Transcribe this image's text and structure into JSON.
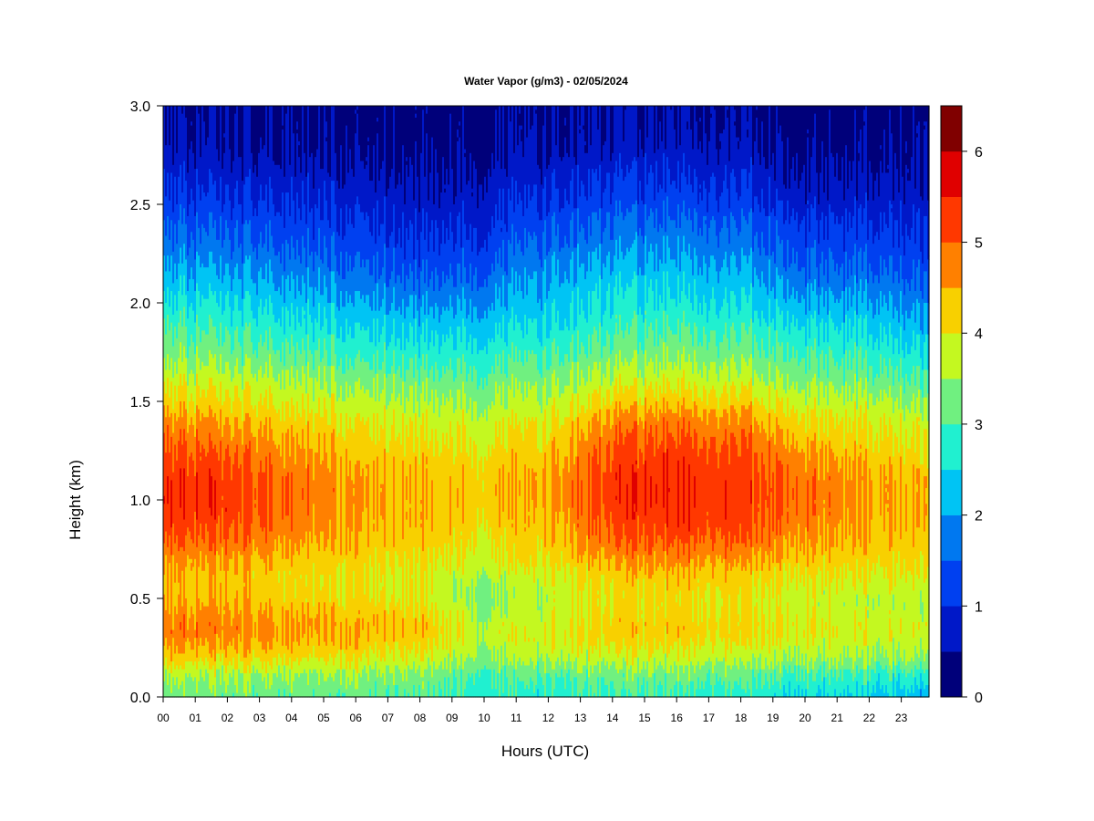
{
  "chart_data": {
    "type": "heatmap",
    "title": "Water Vapor (g/m3) - 02/05/2024",
    "xlabel": "Hours (UTC)",
    "ylabel": "Height (km)",
    "x_tick_labels": [
      "00",
      "01",
      "02",
      "03",
      "04",
      "05",
      "06",
      "07",
      "08",
      "09",
      "10",
      "11",
      "12",
      "13",
      "14",
      "15",
      "16",
      "17",
      "18",
      "19",
      "20",
      "21",
      "22",
      "23"
    ],
    "y_tick_labels": [
      "0.0",
      "0.5",
      "1.0",
      "1.5",
      "2.0",
      "2.5",
      "3.0"
    ],
    "xlim": [
      0,
      23.9
    ],
    "ylim": [
      0,
      3.0
    ],
    "colorbar": {
      "range": [
        0,
        6.5
      ],
      "tick_labels": [
        "0",
        "1",
        "2",
        "3",
        "4",
        "5",
        "6"
      ],
      "levels": [
        0,
        0.5,
        1,
        1.5,
        2,
        2.5,
        3,
        3.5,
        4,
        4.5,
        5,
        5.5,
        6,
        6.5
      ],
      "colors": [
        "#00007a",
        "#0018c8",
        "#0040f0",
        "#0078f0",
        "#00c4f4",
        "#20f0d0",
        "#70f080",
        "#c4f820",
        "#f8d000",
        "#ff8000",
        "#ff3800",
        "#e00000",
        "#800000"
      ]
    },
    "profile_heights_km": [
      0,
      0.1,
      0.2,
      0.3,
      0.35,
      0.4,
      0.5,
      0.6,
      0.7,
      0.8,
      0.9,
      1.0,
      1.1,
      1.2,
      1.3,
      1.4,
      1.5,
      1.6,
      1.7,
      1.8,
      1.9,
      2.0,
      2.1,
      2.2,
      2.3,
      2.4,
      2.5,
      2.6,
      2.7,
      2.8,
      2.9,
      3.0
    ],
    "profiles": [
      {
        "hour": 0,
        "values": [
          3.2,
          3.5,
          4.3,
          4.7,
          4.8,
          4.7,
          4.4,
          4.4,
          4.6,
          5.0,
          5.3,
          5.4,
          5.4,
          5.2,
          5.0,
          4.7,
          4.2,
          3.9,
          3.5,
          3.2,
          3.0,
          2.6,
          2.3,
          2.0,
          1.7,
          1.5,
          1.2,
          1.0,
          0.8,
          0.6,
          0.55,
          0.5
        ]
      },
      {
        "hour": 2,
        "values": [
          3.2,
          3.5,
          4.2,
          4.7,
          4.8,
          4.7,
          4.4,
          4.3,
          4.6,
          5.0,
          5.2,
          5.3,
          5.3,
          5.1,
          4.8,
          4.5,
          4.1,
          3.8,
          3.4,
          3.1,
          2.8,
          2.5,
          2.2,
          1.9,
          1.6,
          1.4,
          1.1,
          0.9,
          0.7,
          0.5,
          0.45,
          0.4
        ]
      },
      {
        "hour": 4,
        "values": [
          3.1,
          3.4,
          4.1,
          4.5,
          4.6,
          4.5,
          4.2,
          4.1,
          4.3,
          4.6,
          4.8,
          4.9,
          4.9,
          4.7,
          4.5,
          4.2,
          3.9,
          3.6,
          3.2,
          2.9,
          2.6,
          2.3,
          2.0,
          1.7,
          1.4,
          1.2,
          1.0,
          0.8,
          0.6,
          0.45,
          0.4,
          0.35
        ]
      },
      {
        "hour": 6,
        "values": [
          3.1,
          3.4,
          4.0,
          4.4,
          4.5,
          4.4,
          4.1,
          4.0,
          4.2,
          4.4,
          4.5,
          4.6,
          4.6,
          4.4,
          4.2,
          4.0,
          3.7,
          3.4,
          3.0,
          2.7,
          2.4,
          2.1,
          1.8,
          1.5,
          1.3,
          1.1,
          0.9,
          0.7,
          0.5,
          0.4,
          0.35,
          0.3
        ]
      },
      {
        "hour": 8,
        "values": [
          3.1,
          3.3,
          3.9,
          4.3,
          4.4,
          4.3,
          4.0,
          3.9,
          4.1,
          4.3,
          4.4,
          4.4,
          4.4,
          4.3,
          4.1,
          3.9,
          3.6,
          3.3,
          2.9,
          2.6,
          2.3,
          1.9,
          1.6,
          1.3,
          1.1,
          0.9,
          0.7,
          0.6,
          0.45,
          0.35,
          0.3,
          0.25
        ]
      },
      {
        "hour": 10,
        "values": [
          2.8,
          3.0,
          3.5,
          3.7,
          3.7,
          3.6,
          3.4,
          3.6,
          3.9,
          4.1,
          4.2,
          4.3,
          4.3,
          4.2,
          4.0,
          3.8,
          3.5,
          3.2,
          2.9,
          2.6,
          2.3,
          2.0,
          1.7,
          1.4,
          1.2,
          1.0,
          0.8,
          0.7,
          0.55,
          0.45,
          0.4,
          0.35
        ]
      },
      {
        "hour": 12,
        "values": [
          2.7,
          3.0,
          3.6,
          3.9,
          3.9,
          3.8,
          3.7,
          3.8,
          4.1,
          4.3,
          4.4,
          4.5,
          4.5,
          4.4,
          4.2,
          4.0,
          3.7,
          3.4,
          3.1,
          2.8,
          2.5,
          2.3,
          2.1,
          1.9,
          1.6,
          1.4,
          1.1,
          0.9,
          0.7,
          0.55,
          0.45,
          0.4
        ]
      },
      {
        "hour": 14,
        "values": [
          2.9,
          3.2,
          3.8,
          4.2,
          4.3,
          4.2,
          4.1,
          4.2,
          4.6,
          5.0,
          5.2,
          5.3,
          5.3,
          5.2,
          5.0,
          4.7,
          4.2,
          3.8,
          3.4,
          3.1,
          2.8,
          2.6,
          2.4,
          2.1,
          1.8,
          1.6,
          1.3,
          1.1,
          0.85,
          0.65,
          0.55,
          0.5
        ]
      },
      {
        "hour": 16,
        "values": [
          2.9,
          3.2,
          3.8,
          4.2,
          4.3,
          4.2,
          4.1,
          4.3,
          4.7,
          5.1,
          5.3,
          5.4,
          5.4,
          5.3,
          5.1,
          4.8,
          4.3,
          3.9,
          3.5,
          3.2,
          2.9,
          2.6,
          2.4,
          2.1,
          1.9,
          1.6,
          1.3,
          1.1,
          0.85,
          0.65,
          0.55,
          0.5
        ]
      },
      {
        "hour": 18,
        "values": [
          2.8,
          3.1,
          3.7,
          4.1,
          4.2,
          4.1,
          4.0,
          4.2,
          4.6,
          5.0,
          5.2,
          5.3,
          5.3,
          5.2,
          5.0,
          4.7,
          4.2,
          3.8,
          3.4,
          3.1,
          2.8,
          2.5,
          2.3,
          2.0,
          1.7,
          1.5,
          1.2,
          1.0,
          0.8,
          0.6,
          0.5,
          0.45
        ]
      },
      {
        "hour": 20,
        "values": [
          2.5,
          2.9,
          3.6,
          3.9,
          4.0,
          3.9,
          3.8,
          4.0,
          4.3,
          4.6,
          4.8,
          4.9,
          4.9,
          4.7,
          4.4,
          4.1,
          3.8,
          3.4,
          3.1,
          2.8,
          2.5,
          2.1,
          1.8,
          1.5,
          1.3,
          1.1,
          0.8,
          0.6,
          0.45,
          0.35,
          0.3,
          0.25
        ]
      },
      {
        "hour": 22,
        "values": [
          2.4,
          2.8,
          3.5,
          3.8,
          3.9,
          3.8,
          3.7,
          3.9,
          4.2,
          4.4,
          4.5,
          4.6,
          4.6,
          4.4,
          4.2,
          4.0,
          3.7,
          3.3,
          3.0,
          2.7,
          2.4,
          2.1,
          1.8,
          1.5,
          1.3,
          1.1,
          0.85,
          0.65,
          0.5,
          0.4,
          0.35,
          0.3
        ]
      },
      {
        "hour": 23.9,
        "values": [
          2.0,
          2.6,
          3.4,
          3.7,
          3.8,
          3.7,
          3.6,
          3.8,
          4.1,
          4.2,
          4.3,
          4.3,
          4.3,
          4.1,
          3.9,
          3.7,
          3.3,
          3.0,
          2.6,
          2.3,
          2.0,
          1.7,
          1.4,
          1.2,
          1.0,
          0.85,
          0.7,
          0.55,
          0.45,
          0.35,
          0.3,
          0.25
        ]
      }
    ]
  }
}
